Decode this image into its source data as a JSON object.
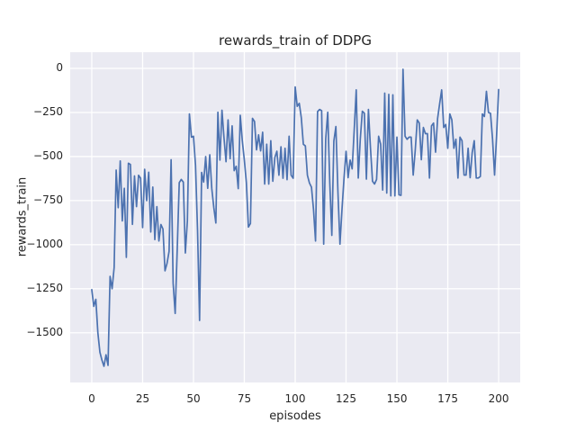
{
  "title": "rewards_train of DDPG",
  "axes": {
    "xlabel": "episodes",
    "ylabel": "rewards_train"
  },
  "colors": {
    "line": "#4c72b0",
    "panel_bg": "#eaeaf2",
    "grid": "#ffffff",
    "text": "#262626",
    "figure_bg": "#ffffff"
  },
  "chart_data": {
    "type": "line",
    "title": "rewards_train of DDPG",
    "xlabel": "episodes",
    "ylabel": "rewards_train",
    "legend": null,
    "grid": true,
    "x_start": 0,
    "x_step": 1,
    "xticks": [
      0,
      25,
      50,
      75,
      100,
      125,
      150,
      175,
      200
    ],
    "yticks": [
      0,
      -250,
      -500,
      -750,
      -1000,
      -1250,
      -1500
    ],
    "xlim": [
      -10.6,
      210.6
    ],
    "ylim": [
      -1782,
      92
    ],
    "values": [
      -1255,
      -1350,
      -1310,
      -1500,
      -1610,
      -1655,
      -1690,
      -1625,
      -1685,
      -1180,
      -1250,
      -1130,
      -577,
      -790,
      -525,
      -865,
      -680,
      -1072,
      -538,
      -545,
      -885,
      -610,
      -784,
      -606,
      -623,
      -903,
      -572,
      -750,
      -589,
      -928,
      -673,
      -971,
      -784,
      -979,
      -886,
      -911,
      -1148,
      -1106,
      -1038,
      -518,
      -1220,
      -1390,
      -1030,
      -648,
      -630,
      -645,
      -1047,
      -865,
      -258,
      -390,
      -385,
      -550,
      -920,
      -1430,
      -590,
      -645,
      -500,
      -680,
      -490,
      -682,
      -790,
      -877,
      -249,
      -520,
      -237,
      -394,
      -529,
      -292,
      -512,
      -326,
      -580,
      -555,
      -682,
      -266,
      -411,
      -520,
      -648,
      -900,
      -880,
      -283,
      -301,
      -462,
      -377,
      -468,
      -362,
      -656,
      -430,
      -656,
      -410,
      -640,
      -505,
      -470,
      -606,
      -445,
      -623,
      -453,
      -631,
      -385,
      -606,
      -623,
      -105,
      -215,
      -198,
      -280,
      -430,
      -440,
      -606,
      -650,
      -674,
      -800,
      -979,
      -245,
      -233,
      -240,
      -997,
      -400,
      -249,
      -650,
      -947,
      -412,
      -330,
      -700,
      -997,
      -800,
      -622,
      -470,
      -620,
      -520,
      -570,
      -350,
      -122,
      -622,
      -400,
      -243,
      -254,
      -628,
      -233,
      -450,
      -640,
      -656,
      -630,
      -385,
      -430,
      -690,
      -140,
      -707,
      -147,
      -723,
      -150,
      -723,
      -390,
      -717,
      -720,
      -5,
      -385,
      -402,
      -390,
      -390,
      -605,
      -466,
      -292,
      -310,
      -518,
      -335,
      -370,
      -370,
      -622,
      -326,
      -310,
      -475,
      -284,
      -200,
      -122,
      -335,
      -318,
      -453,
      -258,
      -292,
      -453,
      -402,
      -622,
      -390,
      -410,
      -605,
      -605,
      -453,
      -620,
      -478,
      -410,
      -622,
      -622,
      -613,
      -258,
      -273,
      -130,
      -250,
      -255,
      -400,
      -605,
      -380,
      -120
    ]
  }
}
